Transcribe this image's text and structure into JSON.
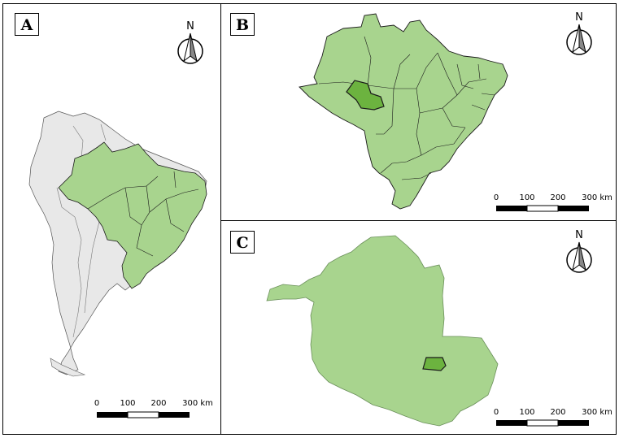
{
  "panels": {
    "a": {
      "letter": "A"
    },
    "b": {
      "letter": "B"
    },
    "c": {
      "letter": "C"
    }
  },
  "north_label": "N",
  "scale": {
    "ticks": [
      "0",
      "100",
      "200"
    ],
    "last": "300 km"
  },
  "colors": {
    "continent": "#e8e8e8",
    "brazil": "#a8d48e",
    "highlight": "#6cb33f",
    "border": "#000000"
  }
}
